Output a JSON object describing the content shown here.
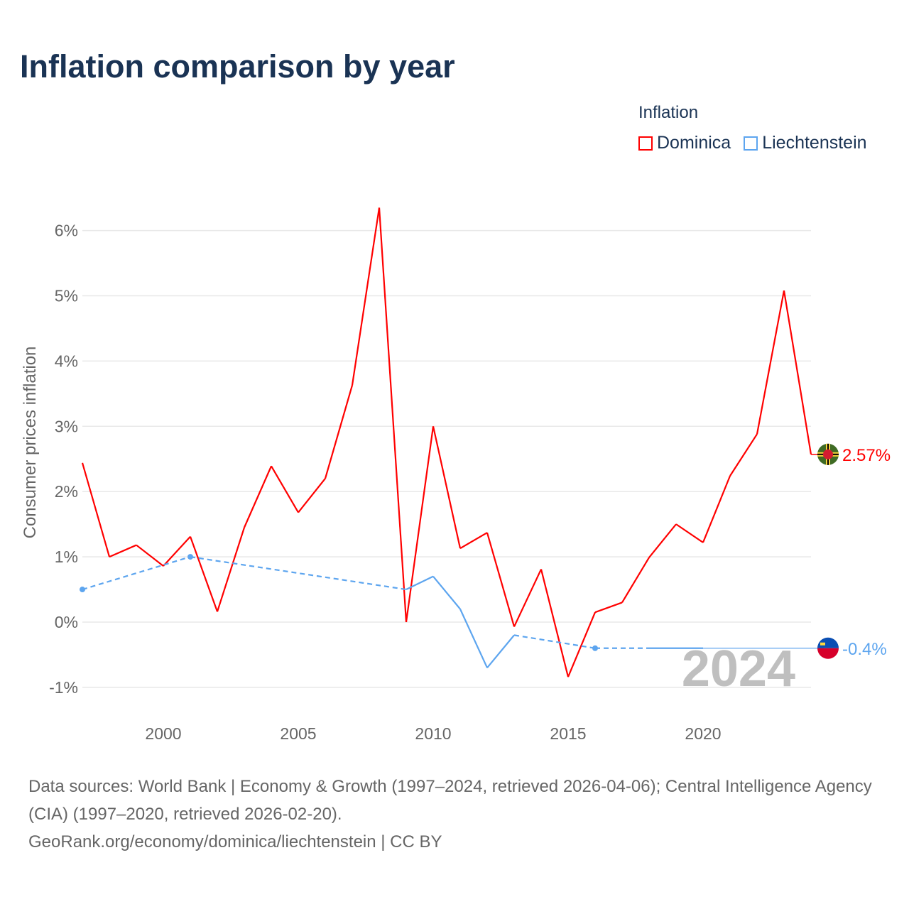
{
  "title": "Inflation comparison by year",
  "legend": {
    "title": "Inflation",
    "items": [
      {
        "label": "Dominica",
        "color": "#ff0000"
      },
      {
        "label": "Liechtenstein",
        "color": "#5da5ef"
      }
    ]
  },
  "watermark_year": "2024",
  "footer": {
    "sources": "Data sources: World Bank | Economy & Growth (1997–2024, retrieved 2026-04-06); Central Intelligence Agency (CIA) (1997–2020, retrieved 2026-02-20).",
    "link": "GeoRank.org/economy/dominica/liechtenstein | CC BY"
  },
  "chart_data": {
    "type": "line",
    "title": "Inflation comparison by year",
    "xlabel": "",
    "ylabel": "Consumer prices inflation",
    "xlim": [
      1997,
      2024
    ],
    "ylim": [
      -1.2,
      6.5
    ],
    "x_ticks": [
      2000,
      2005,
      2010,
      2015,
      2020
    ],
    "x_tick_labels": [
      "2000",
      "2005",
      "2010",
      "2015",
      "2020"
    ],
    "y_ticks": [
      -1,
      0,
      1,
      2,
      3,
      4,
      5,
      6
    ],
    "y_tick_labels": [
      "-1%",
      "0%",
      "1%",
      "2%",
      "3%",
      "4%",
      "5%",
      "6%"
    ],
    "grid": true,
    "legend_position": "top-right",
    "series": [
      {
        "name": "Dominica",
        "color": "#ff0000",
        "end_label": "2.57%",
        "x": [
          1997,
          1998,
          1999,
          2000,
          2001,
          2002,
          2003,
          2004,
          2005,
          2006,
          2007,
          2008,
          2009,
          2010,
          2011,
          2012,
          2013,
          2014,
          2015,
          2016,
          2017,
          2018,
          2019,
          2020,
          2021,
          2022,
          2023,
          2024
        ],
        "values": [
          2.44,
          1.0,
          1.18,
          0.86,
          1.31,
          0.16,
          1.45,
          2.39,
          1.68,
          2.2,
          3.63,
          6.35,
          0.0,
          3.0,
          1.13,
          1.37,
          -0.07,
          0.81,
          -0.84,
          0.15,
          0.3,
          0.99,
          1.5,
          1.22,
          2.24,
          2.88,
          5.08,
          2.57
        ]
      },
      {
        "name": "Liechtenstein",
        "color": "#5da5ef",
        "end_label": "-0.4%",
        "x": [
          1997,
          2001,
          2009,
          2010,
          2011,
          2012,
          2013,
          2016,
          2018,
          2019,
          2020
        ],
        "values": [
          0.5,
          1.0,
          0.5,
          0.7,
          0.2,
          -0.7,
          -0.2,
          -0.4,
          -0.4,
          -0.4,
          -0.4
        ]
      }
    ]
  }
}
